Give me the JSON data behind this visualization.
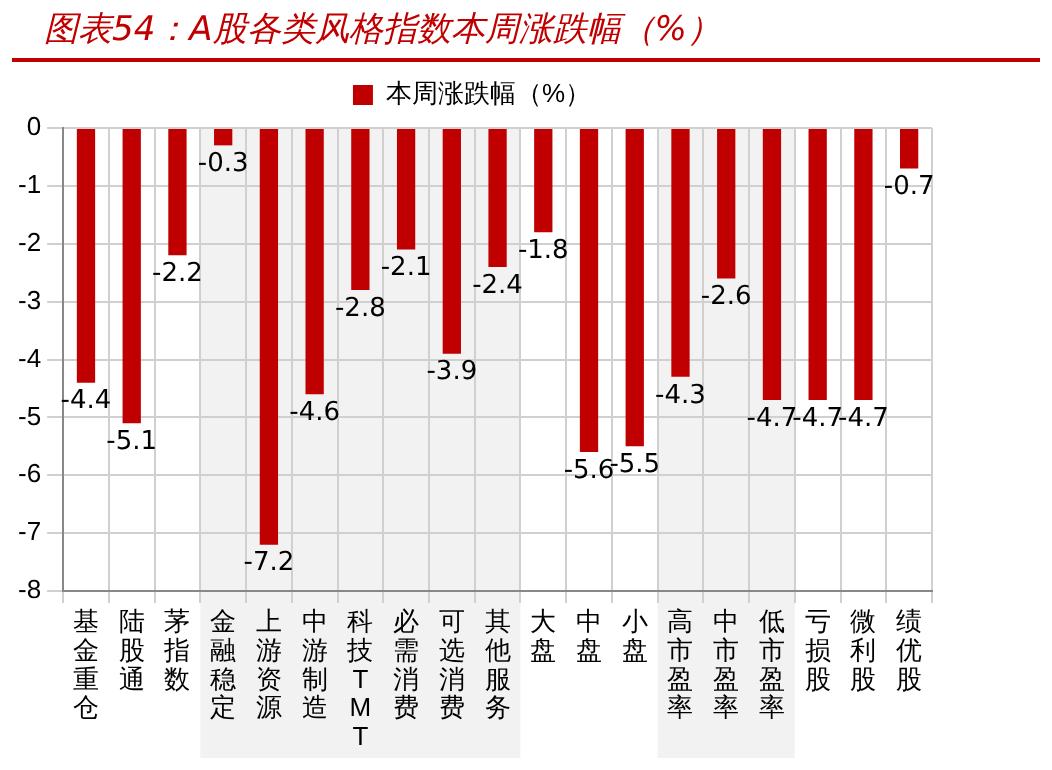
{
  "chart_data": {
    "type": "bar",
    "title": "图表54：A股各类风格指数本周涨跌幅（%）",
    "categories": [
      "基金重仓",
      "陆股通",
      "茅指数",
      "金融稳定",
      "上游资源",
      "中游制造",
      "科技TMT",
      "必需消费",
      "可选消费",
      "其他服务",
      "大盘",
      "中盘",
      "小盘",
      "高市盈率",
      "中市盈率",
      "低市盈率",
      "亏损股",
      "微利股",
      "绩优股"
    ],
    "series": [
      {
        "name": "本周涨跌幅（%）",
        "color": "#c00000",
        "values": [
          -4.4,
          -5.1,
          -2.2,
          -0.3,
          -7.2,
          -4.6,
          -2.8,
          -2.1,
          -3.9,
          -2.4,
          -1.8,
          -5.6,
          -5.5,
          -4.3,
          -2.6,
          -4.7,
          -4.7,
          -4.7,
          -0.7
        ]
      }
    ],
    "ylim": [
      -8,
      0
    ],
    "yticks": [
      0,
      -1,
      -2,
      -3,
      -4,
      -5,
      -6,
      -7,
      -8
    ],
    "bands": [
      {
        "axis": "x",
        "from": "金融稳定",
        "to": "其他服务",
        "color": "#f2f2f2"
      },
      {
        "axis": "x",
        "from": "高市盈率",
        "to": "低市盈率",
        "color": "#f2f2f2"
      }
    ],
    "grid": true,
    "legend": "top",
    "data_labels": true
  }
}
